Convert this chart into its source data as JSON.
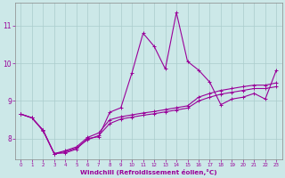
{
  "xlabel": "Windchill (Refroidissement éolien,°C)",
  "background_color": "#cce8e8",
  "grid_color": "#aacccc",
  "line_color": "#990099",
  "x_ticks": [
    0,
    1,
    2,
    3,
    4,
    5,
    6,
    7,
    8,
    9,
    10,
    11,
    12,
    13,
    14,
    15,
    16,
    17,
    18,
    19,
    20,
    21,
    22,
    23
  ],
  "y_ticks": [
    8,
    9,
    10,
    11
  ],
  "ylim": [
    7.45,
    11.6
  ],
  "xlim": [
    -0.5,
    23.5
  ],
  "series": {
    "line1_x": [
      0,
      1,
      2,
      3,
      4,
      5,
      6,
      7,
      8,
      9,
      10,
      11,
      12,
      13,
      14,
      15,
      16,
      17,
      18,
      19,
      20,
      21,
      22,
      23
    ],
    "line1_y": [
      8.65,
      8.55,
      8.2,
      7.6,
      7.62,
      7.72,
      8.0,
      8.05,
      8.7,
      8.82,
      9.75,
      10.8,
      10.45,
      9.85,
      11.35,
      10.05,
      9.82,
      9.5,
      8.9,
      9.05,
      9.1,
      9.2,
      9.05,
      9.82
    ],
    "line2_x": [
      0,
      1,
      2,
      3,
      4,
      5,
      6,
      7,
      8,
      9,
      10,
      11,
      12,
      13,
      14,
      15,
      16,
      17,
      18,
      19,
      20,
      21,
      22,
      23
    ],
    "line2_y": [
      8.65,
      8.55,
      8.22,
      7.6,
      7.68,
      7.78,
      8.03,
      8.15,
      8.5,
      8.58,
      8.63,
      8.68,
      8.72,
      8.77,
      8.82,
      8.87,
      9.1,
      9.2,
      9.28,
      9.33,
      9.38,
      9.42,
      9.42,
      9.48
    ],
    "line3_x": [
      0,
      1,
      2,
      3,
      4,
      5,
      6,
      7,
      8,
      9,
      10,
      11,
      12,
      13,
      14,
      15,
      16,
      17,
      18,
      19,
      20,
      21,
      22,
      23
    ],
    "line3_y": [
      8.65,
      8.55,
      8.22,
      7.6,
      7.65,
      7.75,
      7.97,
      8.08,
      8.4,
      8.52,
      8.57,
      8.62,
      8.66,
      8.71,
      8.76,
      8.81,
      9.0,
      9.1,
      9.18,
      9.23,
      9.28,
      9.33,
      9.33,
      9.38
    ]
  }
}
